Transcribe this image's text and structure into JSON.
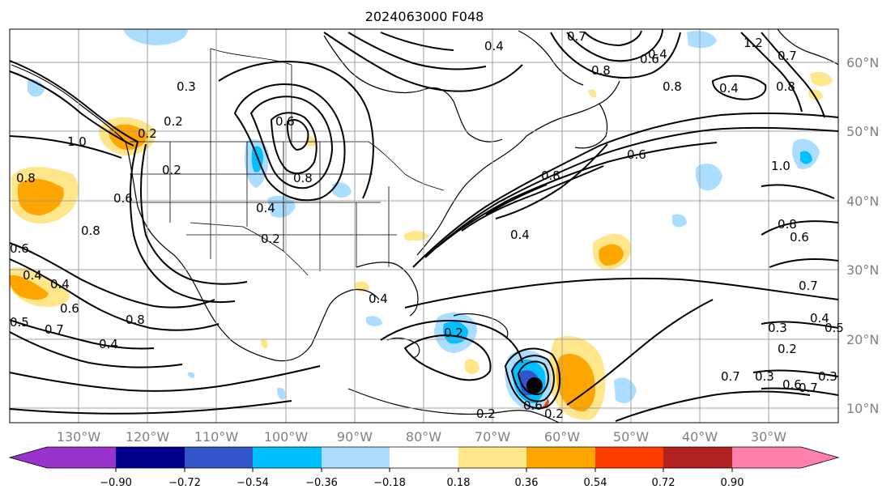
{
  "title": "2024063000 F048",
  "longitude_labels": [
    "130°W",
    "120°W",
    "110°W",
    "100°W",
    "90°W",
    "80°W",
    "70°W",
    "60°W",
    "50°W",
    "40°W",
    "30°W"
  ],
  "latitude_labels": [
    "60°N",
    "50°N",
    "40°N",
    "30°N",
    "20°N",
    "10°N"
  ],
  "colorbar": {
    "tick_labels": [
      "−0.90",
      "−0.72",
      "−0.54",
      "−0.36",
      "−0.18",
      "0.18",
      "0.36",
      "0.54",
      "0.72",
      "0.90"
    ],
    "colors": [
      "#9933cc",
      "#00008b",
      "#3355cc",
      "#00bfff",
      "#aaddff",
      "#ffffff",
      "#ffe68a",
      "#ffa500",
      "#ff3c00",
      "#b22222",
      "#ff80aa"
    ]
  },
  "contour_labels": [
    "0.3",
    "0.2",
    "1.0",
    "0.8",
    "0.2",
    "0.6",
    "0.8",
    "0.4",
    "0.2",
    "0.4",
    "0.6",
    "0.7",
    "0.8",
    "0.4",
    "0.6",
    "0.8",
    "0.4",
    "0.7",
    "0.8",
    "0.6",
    "1.2",
    "0.4",
    "0.8",
    "0.8",
    "0.6",
    "0.4",
    "0.4",
    "0.2",
    "0.2",
    "0.6",
    "0.7",
    "0.8",
    "0.4",
    "1.0",
    "0.8",
    "0.7",
    "0.5",
    "0.6",
    "0.4",
    "0.6",
    "0.7",
    "0.3",
    "0.5",
    "0.2",
    "0.3",
    "0.4",
    "0.6",
    "0.7",
    "0.2",
    "0.3",
    "0.2"
  ]
}
